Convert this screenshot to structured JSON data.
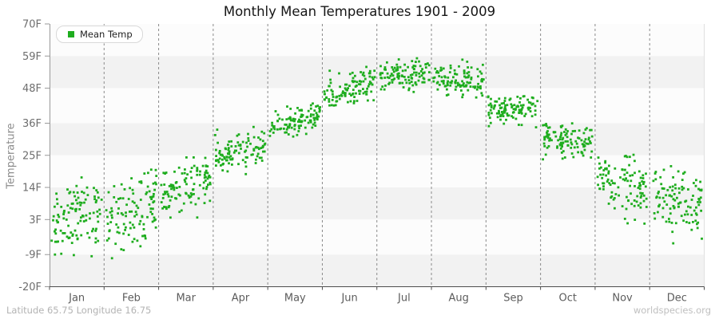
{
  "title": "Monthly Mean Temperatures 1901 - 2009",
  "legend": {
    "label": "Mean Temp"
  },
  "y_axis": {
    "label": "Temperature"
  },
  "footer": {
    "left": "Latitude 65.75 Longitude 16.75",
    "right": "worldspecies.org"
  },
  "chart_data": {
    "type": "scatter",
    "title": "Monthly Mean Temperatures 1901 - 2009",
    "xlabel": "",
    "ylabel": "Temperature",
    "x_categories": [
      "Jan",
      "Feb",
      "Mar",
      "Apr",
      "May",
      "Jun",
      "Jul",
      "Aug",
      "Sep",
      "Oct",
      "Nov",
      "Dec"
    ],
    "y_ticks": [
      {
        "label": "70F",
        "value": 70
      },
      {
        "label": "59F",
        "value": 59
      },
      {
        "label": "48F",
        "value": 48
      },
      {
        "label": "36F",
        "value": 36
      },
      {
        "label": "25F",
        "value": 25
      },
      {
        "label": "14F",
        "value": 14
      },
      {
        "label": "3F",
        "value": 3
      },
      {
        "label": "-9F",
        "value": -9
      },
      {
        "label": "-20F",
        "value": -20
      }
    ],
    "ylim": [
      -20,
      70
    ],
    "legend_position": "top-left",
    "grid": {
      "vertical_dashed_month_boundaries": true,
      "horizontal_bands_alternating": true
    },
    "year_range": "1901-2009",
    "points_per_month": 109,
    "series": [
      {
        "name": "Mean Temp",
        "color": "#1ead1e",
        "monthly_distributions_F": [
          {
            "month": "Jan",
            "mean": 4.0,
            "sd": 5.8,
            "min": -12.5,
            "max": 20,
            "trend": 5
          },
          {
            "month": "Feb",
            "mean": 5.5,
            "sd": 6.3,
            "min": -13.5,
            "max": 23,
            "trend": 4
          },
          {
            "month": "Mar",
            "mean": 14.0,
            "sd": 4.6,
            "min": -2,
            "max": 27,
            "trend": 6
          },
          {
            "month": "Apr",
            "mean": 26.5,
            "sd": 3.2,
            "min": 18,
            "max": 35,
            "trend": 4
          },
          {
            "month": "May",
            "mean": 36.5,
            "sd": 2.5,
            "min": 29.5,
            "max": 45.5,
            "trend": 5
          },
          {
            "month": "Jun",
            "mean": 47.5,
            "sd": 2.8,
            "min": 39.5,
            "max": 59,
            "trend": 4
          },
          {
            "month": "Jul",
            "mean": 52.5,
            "sd": 2.6,
            "min": 45,
            "max": 61,
            "trend": 1.5
          },
          {
            "month": "Aug",
            "mean": 50.5,
            "sd": 2.3,
            "min": 44,
            "max": 58.5,
            "trend": -1
          },
          {
            "month": "Sep",
            "mean": 41.0,
            "sd": 2.3,
            "min": 33.5,
            "max": 47.5,
            "trend": 0
          },
          {
            "month": "Oct",
            "mean": 30.0,
            "sd": 3.0,
            "min": 20,
            "max": 38,
            "trend": -1.5
          },
          {
            "month": "Nov",
            "mean": 16.5,
            "sd": 4.8,
            "min": -4,
            "max": 27,
            "trend": -6
          },
          {
            "month": "Dec",
            "mean": 10.5,
            "sd": 5.5,
            "min": -11,
            "max": 23,
            "trend": -5
          }
        ]
      }
    ],
    "style": {
      "band_light": "#fcfcfc",
      "band_shade": "#f2f2f2",
      "gridline_color": "#8a8a8a",
      "axis_color_left": "#999999",
      "axis_color_bottom": "#4d4d4d",
      "plot_border_right": "#e0e0e0"
    }
  }
}
